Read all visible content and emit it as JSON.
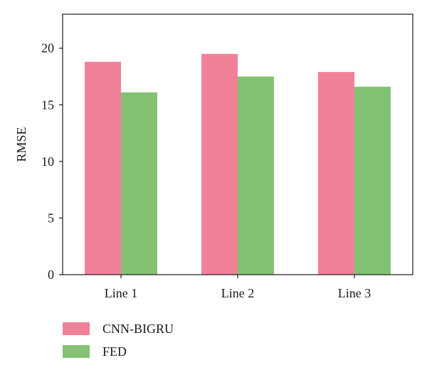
{
  "chart_data": {
    "type": "bar",
    "categories": [
      "Line 1",
      "Line 2",
      "Line 3"
    ],
    "series": [
      {
        "name": "CNN-BIGRU",
        "values": [
          18.8,
          19.5,
          17.9
        ],
        "color": "#f08199"
      },
      {
        "name": "FED",
        "values": [
          16.1,
          17.5,
          16.6
        ],
        "color": "#84c273"
      }
    ],
    "title": "",
    "xlabel": "",
    "ylabel": "RMSE",
    "ylim": [
      0,
      23
    ],
    "yticks": [
      0,
      5,
      10,
      15,
      20
    ],
    "grid": false,
    "legend_position": "bottom-left"
  }
}
